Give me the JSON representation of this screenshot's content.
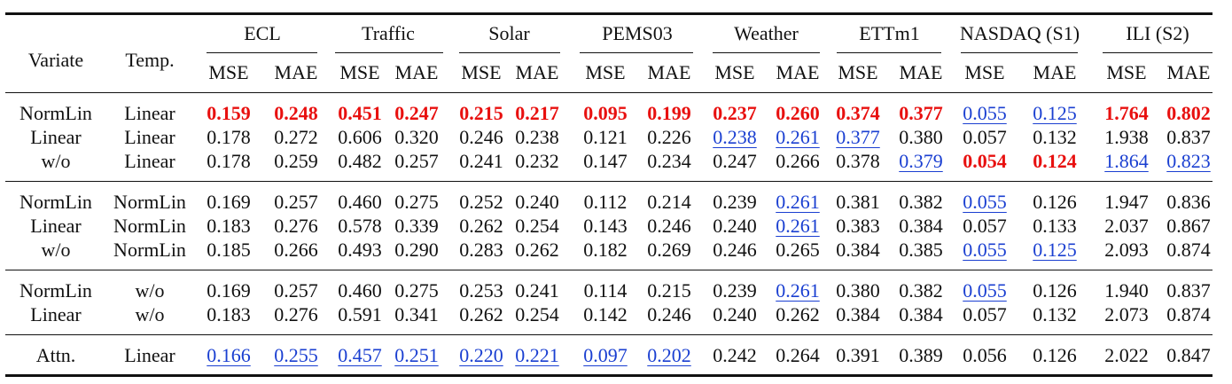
{
  "colors": {
    "best": "#e8100f",
    "second": "#1a3fd1"
  },
  "header": {
    "variate": "Variate",
    "temp": "Temp.",
    "datasets": [
      "ECL",
      "Traffic",
      "Solar",
      "PEMS03",
      "Weather",
      "ETTm1",
      "NASDAQ (S1)",
      "ILI (S2)"
    ],
    "metrics": [
      "MSE",
      "MAE"
    ]
  },
  "groups": [
    [
      {
        "variate": "NormLin",
        "temp": "Linear",
        "cells": [
          {
            "v": "0.159",
            "s": "best"
          },
          {
            "v": "0.248",
            "s": "best"
          },
          {
            "v": "0.451",
            "s": "best"
          },
          {
            "v": "0.247",
            "s": "best"
          },
          {
            "v": "0.215",
            "s": "best"
          },
          {
            "v": "0.217",
            "s": "best"
          },
          {
            "v": "0.095",
            "s": "best"
          },
          {
            "v": "0.199",
            "s": "best"
          },
          {
            "v": "0.237",
            "s": "best"
          },
          {
            "v": "0.260",
            "s": "best"
          },
          {
            "v": "0.374",
            "s": "best"
          },
          {
            "v": "0.377",
            "s": "best"
          },
          {
            "v": "0.055",
            "s": "second"
          },
          {
            "v": "0.125",
            "s": "second"
          },
          {
            "v": "1.764",
            "s": "best"
          },
          {
            "v": "0.802",
            "s": "best"
          }
        ]
      },
      {
        "variate": "Linear",
        "temp": "Linear",
        "cells": [
          {
            "v": "0.178"
          },
          {
            "v": "0.272"
          },
          {
            "v": "0.606"
          },
          {
            "v": "0.320"
          },
          {
            "v": "0.246"
          },
          {
            "v": "0.238"
          },
          {
            "v": "0.121"
          },
          {
            "v": "0.226"
          },
          {
            "v": "0.238",
            "s": "second"
          },
          {
            "v": "0.261",
            "s": "second"
          },
          {
            "v": "0.377",
            "s": "second"
          },
          {
            "v": "0.380"
          },
          {
            "v": "0.057"
          },
          {
            "v": "0.132"
          },
          {
            "v": "1.938"
          },
          {
            "v": "0.837"
          }
        ]
      },
      {
        "variate": "w/o",
        "temp": "Linear",
        "cells": [
          {
            "v": "0.178"
          },
          {
            "v": "0.259"
          },
          {
            "v": "0.482"
          },
          {
            "v": "0.257"
          },
          {
            "v": "0.241"
          },
          {
            "v": "0.232"
          },
          {
            "v": "0.147"
          },
          {
            "v": "0.234"
          },
          {
            "v": "0.247"
          },
          {
            "v": "0.266"
          },
          {
            "v": "0.378"
          },
          {
            "v": "0.379",
            "s": "second"
          },
          {
            "v": "0.054",
            "s": "best"
          },
          {
            "v": "0.124",
            "s": "best"
          },
          {
            "v": "1.864",
            "s": "second"
          },
          {
            "v": "0.823",
            "s": "second"
          }
        ]
      }
    ],
    [
      {
        "variate": "NormLin",
        "temp": "NormLin",
        "cells": [
          {
            "v": "0.169"
          },
          {
            "v": "0.257"
          },
          {
            "v": "0.460"
          },
          {
            "v": "0.275"
          },
          {
            "v": "0.252"
          },
          {
            "v": "0.240"
          },
          {
            "v": "0.112"
          },
          {
            "v": "0.214"
          },
          {
            "v": "0.239"
          },
          {
            "v": "0.261",
            "s": "second"
          },
          {
            "v": "0.381"
          },
          {
            "v": "0.382"
          },
          {
            "v": "0.055",
            "s": "second"
          },
          {
            "v": "0.126"
          },
          {
            "v": "1.947"
          },
          {
            "v": "0.836"
          }
        ]
      },
      {
        "variate": "Linear",
        "temp": "NormLin",
        "cells": [
          {
            "v": "0.183"
          },
          {
            "v": "0.276"
          },
          {
            "v": "0.578"
          },
          {
            "v": "0.339"
          },
          {
            "v": "0.262"
          },
          {
            "v": "0.254"
          },
          {
            "v": "0.143"
          },
          {
            "v": "0.246"
          },
          {
            "v": "0.240"
          },
          {
            "v": "0.261",
            "s": "second"
          },
          {
            "v": "0.383"
          },
          {
            "v": "0.384"
          },
          {
            "v": "0.057"
          },
          {
            "v": "0.133"
          },
          {
            "v": "2.037"
          },
          {
            "v": "0.867"
          }
        ]
      },
      {
        "variate": "w/o",
        "temp": "NormLin",
        "cells": [
          {
            "v": "0.185"
          },
          {
            "v": "0.266"
          },
          {
            "v": "0.493"
          },
          {
            "v": "0.290"
          },
          {
            "v": "0.283"
          },
          {
            "v": "0.262"
          },
          {
            "v": "0.182"
          },
          {
            "v": "0.269"
          },
          {
            "v": "0.246"
          },
          {
            "v": "0.265"
          },
          {
            "v": "0.384"
          },
          {
            "v": "0.385"
          },
          {
            "v": "0.055",
            "s": "second"
          },
          {
            "v": "0.125",
            "s": "second"
          },
          {
            "v": "2.093"
          },
          {
            "v": "0.874"
          }
        ]
      }
    ],
    [
      {
        "variate": "NormLin",
        "temp": "w/o",
        "cells": [
          {
            "v": "0.169"
          },
          {
            "v": "0.257"
          },
          {
            "v": "0.460"
          },
          {
            "v": "0.275"
          },
          {
            "v": "0.253"
          },
          {
            "v": "0.241"
          },
          {
            "v": "0.114"
          },
          {
            "v": "0.215"
          },
          {
            "v": "0.239"
          },
          {
            "v": "0.261",
            "s": "second"
          },
          {
            "v": "0.380"
          },
          {
            "v": "0.382"
          },
          {
            "v": "0.055",
            "s": "second"
          },
          {
            "v": "0.126"
          },
          {
            "v": "1.940"
          },
          {
            "v": "0.837"
          }
        ]
      },
      {
        "variate": "Linear",
        "temp": "w/o",
        "cells": [
          {
            "v": "0.183"
          },
          {
            "v": "0.276"
          },
          {
            "v": "0.591"
          },
          {
            "v": "0.341"
          },
          {
            "v": "0.262"
          },
          {
            "v": "0.254"
          },
          {
            "v": "0.142"
          },
          {
            "v": "0.246"
          },
          {
            "v": "0.240"
          },
          {
            "v": "0.262"
          },
          {
            "v": "0.384"
          },
          {
            "v": "0.384"
          },
          {
            "v": "0.057"
          },
          {
            "v": "0.132"
          },
          {
            "v": "2.073"
          },
          {
            "v": "0.874"
          }
        ]
      }
    ],
    [
      {
        "variate": "Attn.",
        "temp": "Linear",
        "cells": [
          {
            "v": "0.166",
            "s": "second"
          },
          {
            "v": "0.255",
            "s": "second"
          },
          {
            "v": "0.457",
            "s": "second"
          },
          {
            "v": "0.251",
            "s": "second"
          },
          {
            "v": "0.220",
            "s": "second"
          },
          {
            "v": "0.221",
            "s": "second"
          },
          {
            "v": "0.097",
            "s": "second"
          },
          {
            "v": "0.202",
            "s": "second"
          },
          {
            "v": "0.242"
          },
          {
            "v": "0.264"
          },
          {
            "v": "0.391"
          },
          {
            "v": "0.389"
          },
          {
            "v": "0.056"
          },
          {
            "v": "0.126"
          },
          {
            "v": "2.022"
          },
          {
            "v": "0.847"
          }
        ]
      }
    ]
  ]
}
